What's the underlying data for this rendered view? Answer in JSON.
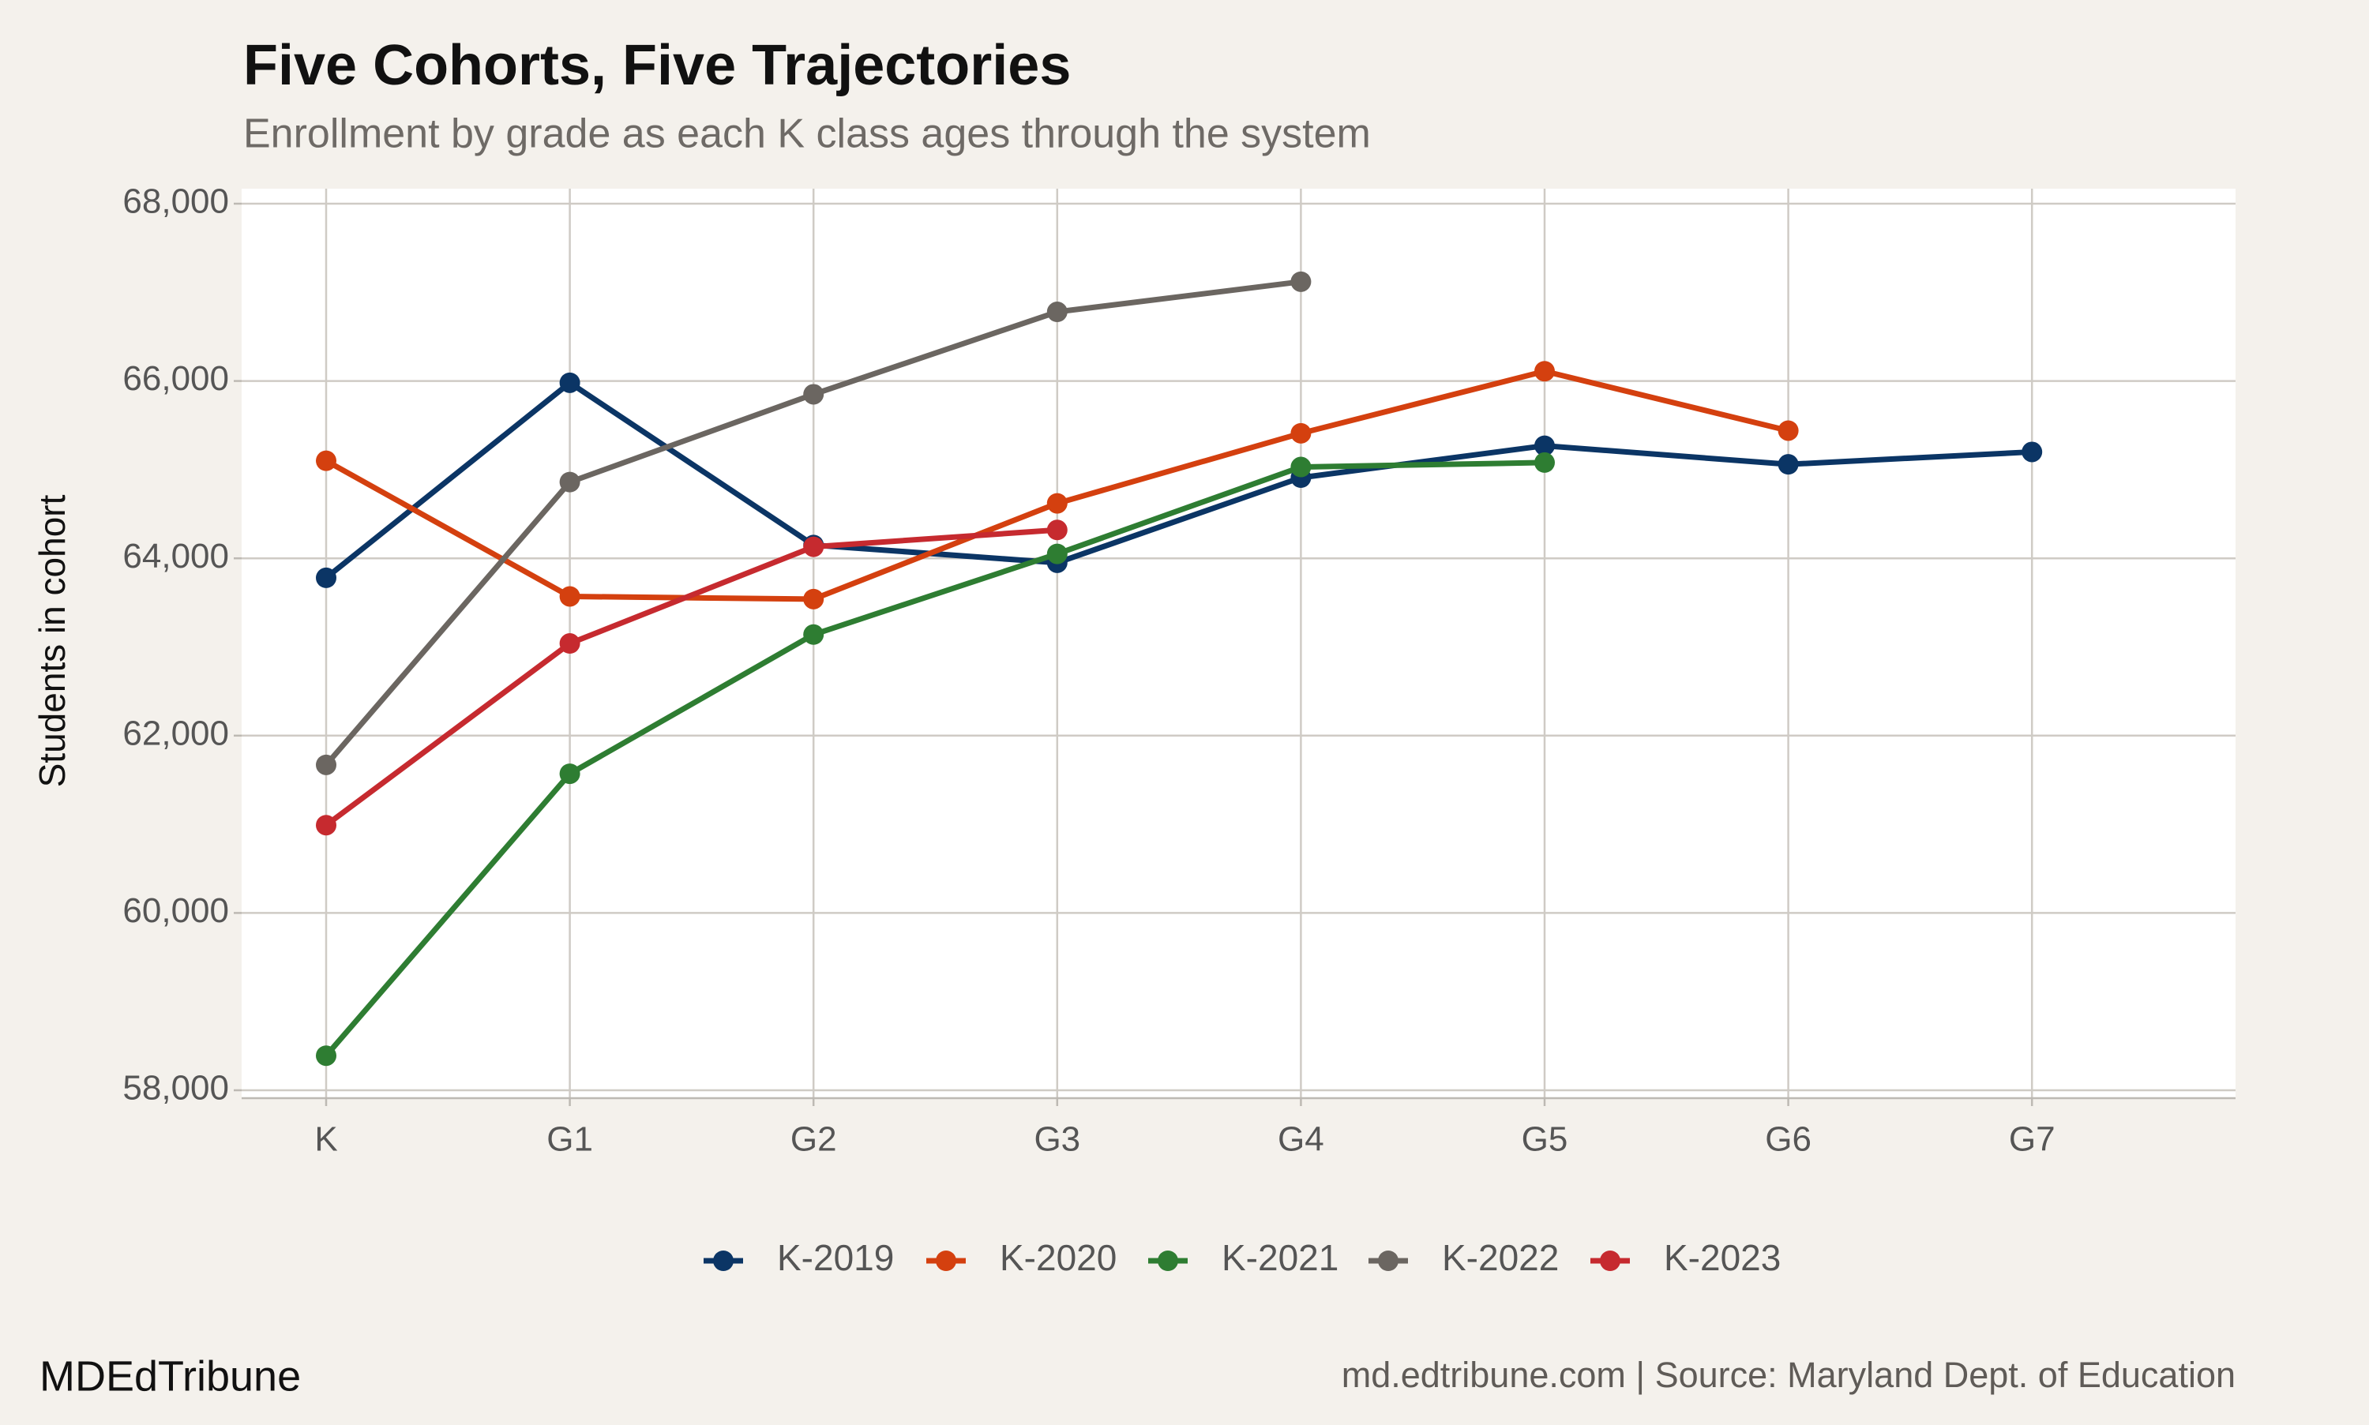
{
  "chart_data": {
    "type": "line",
    "title": "Five Cohorts, Five Trajectories",
    "subtitle": "Enrollment by grade as each K class ages through the system",
    "y_label": "Students in cohort",
    "categories": [
      "K",
      "G1",
      "G2",
      "G3",
      "G4",
      "G5",
      "G6",
      "G7"
    ],
    "series": [
      {
        "name": "K-2019",
        "color": "#0b3565",
        "values": [
          63780,
          65980,
          64150,
          63950,
          64910,
          65270,
          65060,
          65200
        ]
      },
      {
        "name": "K-2020",
        "color": "#d4400f",
        "values": [
          65100,
          63570,
          63540,
          64620,
          65410,
          66110,
          65440,
          null
        ]
      },
      {
        "name": "K-2021",
        "color": "#2e7d32",
        "values": [
          58390,
          61570,
          63140,
          64050,
          65030,
          65080,
          null,
          null
        ]
      },
      {
        "name": "K-2022",
        "color": "#6b6661",
        "values": [
          61670,
          64860,
          65850,
          66780,
          67120,
          null,
          null,
          null
        ]
      },
      {
        "name": "K-2023",
        "color": "#c62a2f",
        "values": [
          60990,
          63040,
          64130,
          64320,
          null,
          null,
          null,
          null
        ]
      }
    ],
    "ylim": [
      58000,
      68000
    ],
    "yticks": [
      {
        "value": 58000,
        "label": "58,000"
      },
      {
        "value": 60000,
        "label": "60,000"
      },
      {
        "value": 62000,
        "label": "62,000"
      },
      {
        "value": 64000,
        "label": "64,000"
      },
      {
        "value": 66000,
        "label": "66,000"
      },
      {
        "value": 68000,
        "label": "68,000"
      }
    ],
    "grid": true,
    "legend": "bottom",
    "brand": "MDEdTribune",
    "source": "md.edtribune.com | Source: Maryland Dept. of Education"
  }
}
